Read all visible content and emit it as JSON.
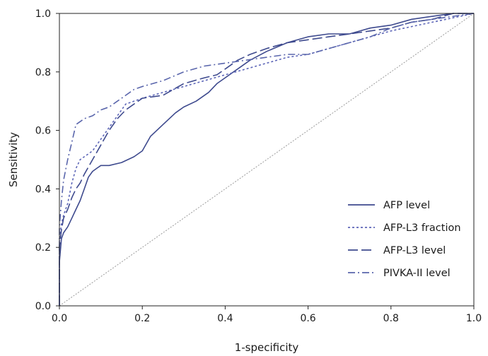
{
  "chart_data": {
    "type": "line",
    "title": "",
    "xlabel": "1-specificity",
    "ylabel": "Sensitivity",
    "xlim": [
      0,
      1
    ],
    "ylim": [
      0,
      1
    ],
    "xticks": [
      "0.0",
      "0.2",
      "0.4",
      "0.6",
      "0.8",
      "1.0"
    ],
    "yticks": [
      "0.0",
      "0.2",
      "0.4",
      "0.6",
      "0.8",
      "1.0"
    ],
    "grid": false,
    "legend_position": "bottom-right",
    "reference_line": {
      "x": [
        0,
        1
      ],
      "y": [
        0,
        1
      ],
      "color": "#9a9a9a",
      "style": "dotted"
    },
    "series": [
      {
        "name": "AFP level",
        "color": "#3e4a8e",
        "style": "solid",
        "x": [
          0,
          0,
          0.005,
          0.01,
          0.02,
          0.03,
          0.04,
          0.05,
          0.06,
          0.07,
          0.08,
          0.09,
          0.1,
          0.12,
          0.15,
          0.18,
          0.2,
          0.22,
          0.25,
          0.28,
          0.3,
          0.33,
          0.36,
          0.38,
          0.4,
          0.43,
          0.46,
          0.5,
          0.55,
          0.6,
          0.65,
          0.7,
          0.75,
          0.8,
          0.85,
          0.9,
          0.95,
          1.0
        ],
        "y": [
          0,
          0.15,
          0.23,
          0.25,
          0.27,
          0.3,
          0.33,
          0.36,
          0.4,
          0.44,
          0.46,
          0.47,
          0.48,
          0.48,
          0.49,
          0.51,
          0.53,
          0.58,
          0.62,
          0.66,
          0.68,
          0.7,
          0.73,
          0.76,
          0.78,
          0.81,
          0.84,
          0.87,
          0.9,
          0.92,
          0.93,
          0.93,
          0.95,
          0.96,
          0.98,
          0.99,
          1.0,
          1.0
        ]
      },
      {
        "name": "AFP-L3 fraction",
        "color": "#5d66b8",
        "style": "dotted",
        "x": [
          0,
          0,
          0.005,
          0.01,
          0.02,
          0.03,
          0.04,
          0.05,
          0.06,
          0.08,
          0.1,
          0.12,
          0.14,
          0.16,
          0.18,
          0.2,
          0.25,
          0.3,
          0.35,
          0.4,
          0.45,
          0.5,
          0.55,
          0.6,
          0.65,
          0.7,
          0.75,
          0.8,
          0.9,
          1.0
        ],
        "y": [
          0,
          0.22,
          0.28,
          0.31,
          0.35,
          0.42,
          0.47,
          0.5,
          0.51,
          0.53,
          0.57,
          0.61,
          0.65,
          0.69,
          0.7,
          0.71,
          0.73,
          0.75,
          0.77,
          0.79,
          0.81,
          0.83,
          0.85,
          0.86,
          0.88,
          0.9,
          0.92,
          0.94,
          0.97,
          1.0
        ]
      },
      {
        "name": "AFP-L3 level",
        "color": "#3e4a8e",
        "style": "dashed",
        "x": [
          0,
          0,
          0.005,
          0.01,
          0.02,
          0.03,
          0.04,
          0.05,
          0.06,
          0.08,
          0.1,
          0.12,
          0.14,
          0.16,
          0.18,
          0.2,
          0.25,
          0.3,
          0.35,
          0.38,
          0.4,
          0.43,
          0.46,
          0.5,
          0.55,
          0.6,
          0.65,
          0.7,
          0.75,
          0.8,
          0.85,
          0.9,
          0.95,
          1.0
        ],
        "y": [
          0,
          0.2,
          0.26,
          0.3,
          0.33,
          0.37,
          0.4,
          0.42,
          0.45,
          0.5,
          0.55,
          0.6,
          0.64,
          0.67,
          0.69,
          0.71,
          0.72,
          0.76,
          0.78,
          0.79,
          0.81,
          0.84,
          0.86,
          0.88,
          0.9,
          0.91,
          0.92,
          0.93,
          0.94,
          0.95,
          0.97,
          0.98,
          1.0,
          1.0
        ]
      },
      {
        "name": "PIVKA-II level",
        "color": "#5a66ac",
        "style": "dash-dot",
        "x": [
          0,
          0,
          0.005,
          0.01,
          0.02,
          0.03,
          0.04,
          0.05,
          0.06,
          0.08,
          0.1,
          0.12,
          0.14,
          0.16,
          0.18,
          0.2,
          0.25,
          0.3,
          0.35,
          0.4,
          0.45,
          0.5,
          0.55,
          0.6,
          0.65,
          0.7,
          0.75,
          0.8,
          0.85,
          0.9,
          0.95,
          1.0
        ],
        "y": [
          0,
          0.27,
          0.36,
          0.43,
          0.5,
          0.56,
          0.62,
          0.63,
          0.64,
          0.65,
          0.67,
          0.68,
          0.7,
          0.72,
          0.74,
          0.75,
          0.77,
          0.8,
          0.82,
          0.83,
          0.84,
          0.85,
          0.86,
          0.86,
          0.88,
          0.9,
          0.92,
          0.95,
          0.97,
          0.98,
          0.99,
          1.0
        ]
      }
    ]
  }
}
